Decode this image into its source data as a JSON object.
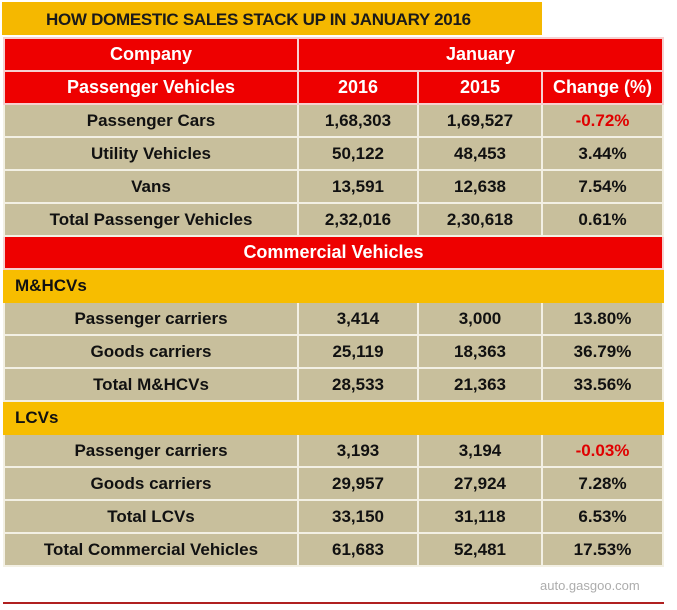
{
  "title": "HOW DOMESTIC SALES STACK UP IN JANUARY 2016",
  "header": {
    "company": "Company",
    "month": "January",
    "section": "Passenger Vehicles",
    "y2016": "2016",
    "y2015": "2015",
    "change": "Change (%)"
  },
  "passenger_rows": [
    {
      "label": "Passenger Cars",
      "v2016": "1,68,303",
      "v2015": "1,69,527",
      "change": "-0.72%",
      "negative": true
    },
    {
      "label": "Utility Vehicles",
      "v2016": "50,122",
      "v2015": "48,453",
      "change": "3.44%"
    },
    {
      "label": "Vans",
      "v2016": "13,591",
      "v2015": "12,638",
      "change": "7.54%"
    },
    {
      "label": "Total Passenger Vehicles",
      "v2016": "2,32,016",
      "v2015": "2,30,618",
      "change": "0.61%"
    }
  ],
  "commercial_title": "Commercial Vehicles",
  "mhcv_title": "M&HCVs",
  "mhcv_rows": [
    {
      "label": "Passenger carriers",
      "v2016": "3,414",
      "v2015": "3,000",
      "change": "13.80%"
    },
    {
      "label": "Goods carriers",
      "v2016": "25,119",
      "v2015": "18,363",
      "change": "36.79%"
    },
    {
      "label": "Total M&HCVs",
      "v2016": "28,533",
      "v2015": "21,363",
      "change": "33.56%"
    }
  ],
  "lcv_title": "LCVs",
  "lcv_rows": [
    {
      "label": "Passenger carriers",
      "v2016": "3,193",
      "v2015": "3,194",
      "change": "-0.03%",
      "negative": true
    },
    {
      "label": "Goods carriers",
      "v2016": "29,957",
      "v2015": "27,924",
      "change": "7.28%"
    },
    {
      "label": "Total LCVs",
      "v2016": "33,150",
      "v2015": "31,118",
      "change": "6.53%"
    },
    {
      "label": "Total Commercial Vehicles",
      "v2016": "61,683",
      "v2015": "52,481",
      "change": "17.53%"
    }
  ],
  "watermark": "auto.gasgoo.com"
}
